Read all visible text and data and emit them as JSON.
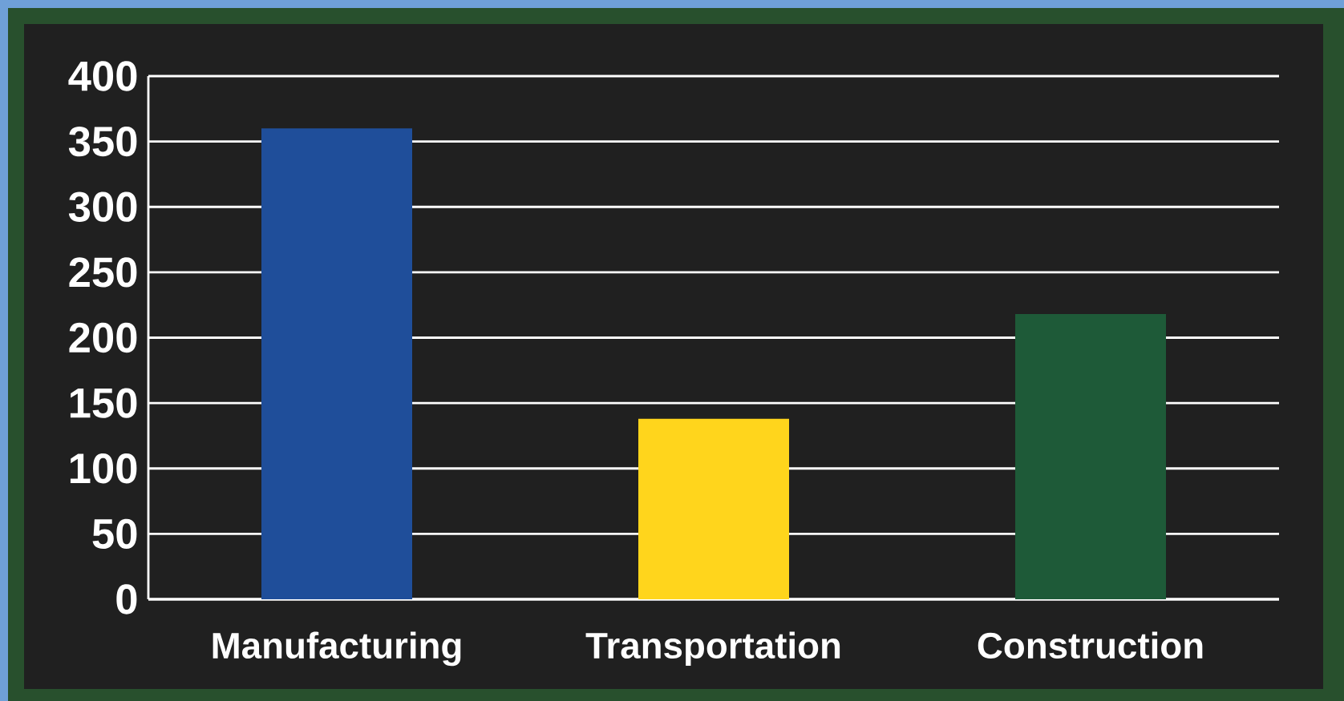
{
  "chart_data": {
    "type": "bar",
    "categories": [
      "Manufacturing",
      "Transportation",
      "Construction"
    ],
    "values": [
      360,
      138,
      218
    ],
    "colors": [
      "#1f4e9a",
      "#ffd51c",
      "#1e5a38"
    ],
    "ylim": [
      0,
      400
    ],
    "yticks": [
      0,
      50,
      100,
      150,
      200,
      250,
      300,
      350,
      400
    ],
    "grid": "y"
  }
}
